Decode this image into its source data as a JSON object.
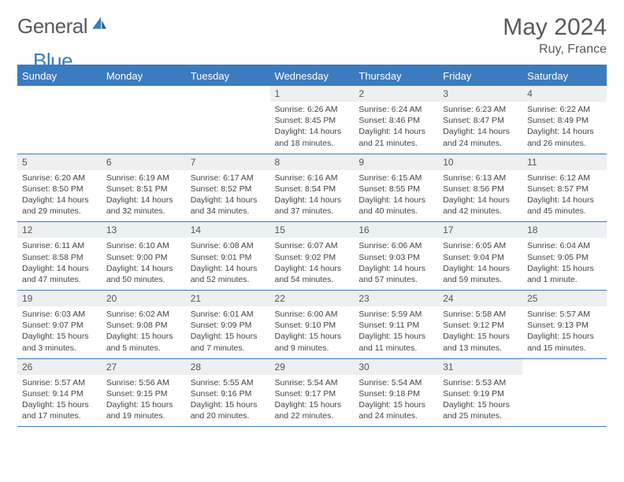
{
  "brand": {
    "name_a": "General",
    "name_b": "Blue"
  },
  "title": "May 2024",
  "location": "Ruy, France",
  "colors": {
    "accent": "#3b7bbf",
    "header_bg": "#3b7bbf",
    "daynum_bg": "#edeff1",
    "text": "#3a3a3a"
  },
  "day_headers": [
    "Sunday",
    "Monday",
    "Tuesday",
    "Wednesday",
    "Thursday",
    "Friday",
    "Saturday"
  ],
  "weeks": [
    [
      null,
      null,
      null,
      {
        "n": "1",
        "sr": "6:26 AM",
        "ss": "8:45 PM",
        "dl": "14 hours and 18 minutes."
      },
      {
        "n": "2",
        "sr": "6:24 AM",
        "ss": "8:46 PM",
        "dl": "14 hours and 21 minutes."
      },
      {
        "n": "3",
        "sr": "6:23 AM",
        "ss": "8:47 PM",
        "dl": "14 hours and 24 minutes."
      },
      {
        "n": "4",
        "sr": "6:22 AM",
        "ss": "8:49 PM",
        "dl": "14 hours and 26 minutes."
      }
    ],
    [
      {
        "n": "5",
        "sr": "6:20 AM",
        "ss": "8:50 PM",
        "dl": "14 hours and 29 minutes."
      },
      {
        "n": "6",
        "sr": "6:19 AM",
        "ss": "8:51 PM",
        "dl": "14 hours and 32 minutes."
      },
      {
        "n": "7",
        "sr": "6:17 AM",
        "ss": "8:52 PM",
        "dl": "14 hours and 34 minutes."
      },
      {
        "n": "8",
        "sr": "6:16 AM",
        "ss": "8:54 PM",
        "dl": "14 hours and 37 minutes."
      },
      {
        "n": "9",
        "sr": "6:15 AM",
        "ss": "8:55 PM",
        "dl": "14 hours and 40 minutes."
      },
      {
        "n": "10",
        "sr": "6:13 AM",
        "ss": "8:56 PM",
        "dl": "14 hours and 42 minutes."
      },
      {
        "n": "11",
        "sr": "6:12 AM",
        "ss": "8:57 PM",
        "dl": "14 hours and 45 minutes."
      }
    ],
    [
      {
        "n": "12",
        "sr": "6:11 AM",
        "ss": "8:58 PM",
        "dl": "14 hours and 47 minutes."
      },
      {
        "n": "13",
        "sr": "6:10 AM",
        "ss": "9:00 PM",
        "dl": "14 hours and 50 minutes."
      },
      {
        "n": "14",
        "sr": "6:08 AM",
        "ss": "9:01 PM",
        "dl": "14 hours and 52 minutes."
      },
      {
        "n": "15",
        "sr": "6:07 AM",
        "ss": "9:02 PM",
        "dl": "14 hours and 54 minutes."
      },
      {
        "n": "16",
        "sr": "6:06 AM",
        "ss": "9:03 PM",
        "dl": "14 hours and 57 minutes."
      },
      {
        "n": "17",
        "sr": "6:05 AM",
        "ss": "9:04 PM",
        "dl": "14 hours and 59 minutes."
      },
      {
        "n": "18",
        "sr": "6:04 AM",
        "ss": "9:05 PM",
        "dl": "15 hours and 1 minute."
      }
    ],
    [
      {
        "n": "19",
        "sr": "6:03 AM",
        "ss": "9:07 PM",
        "dl": "15 hours and 3 minutes."
      },
      {
        "n": "20",
        "sr": "6:02 AM",
        "ss": "9:08 PM",
        "dl": "15 hours and 5 minutes."
      },
      {
        "n": "21",
        "sr": "6:01 AM",
        "ss": "9:09 PM",
        "dl": "15 hours and 7 minutes."
      },
      {
        "n": "22",
        "sr": "6:00 AM",
        "ss": "9:10 PM",
        "dl": "15 hours and 9 minutes."
      },
      {
        "n": "23",
        "sr": "5:59 AM",
        "ss": "9:11 PM",
        "dl": "15 hours and 11 minutes."
      },
      {
        "n": "24",
        "sr": "5:58 AM",
        "ss": "9:12 PM",
        "dl": "15 hours and 13 minutes."
      },
      {
        "n": "25",
        "sr": "5:57 AM",
        "ss": "9:13 PM",
        "dl": "15 hours and 15 minutes."
      }
    ],
    [
      {
        "n": "26",
        "sr": "5:57 AM",
        "ss": "9:14 PM",
        "dl": "15 hours and 17 minutes."
      },
      {
        "n": "27",
        "sr": "5:56 AM",
        "ss": "9:15 PM",
        "dl": "15 hours and 19 minutes."
      },
      {
        "n": "28",
        "sr": "5:55 AM",
        "ss": "9:16 PM",
        "dl": "15 hours and 20 minutes."
      },
      {
        "n": "29",
        "sr": "5:54 AM",
        "ss": "9:17 PM",
        "dl": "15 hours and 22 minutes."
      },
      {
        "n": "30",
        "sr": "5:54 AM",
        "ss": "9:18 PM",
        "dl": "15 hours and 24 minutes."
      },
      {
        "n": "31",
        "sr": "5:53 AM",
        "ss": "9:19 PM",
        "dl": "15 hours and 25 minutes."
      },
      null
    ]
  ],
  "labels": {
    "sunrise": "Sunrise: ",
    "sunset": "Sunset: ",
    "daylight": "Daylight: "
  }
}
